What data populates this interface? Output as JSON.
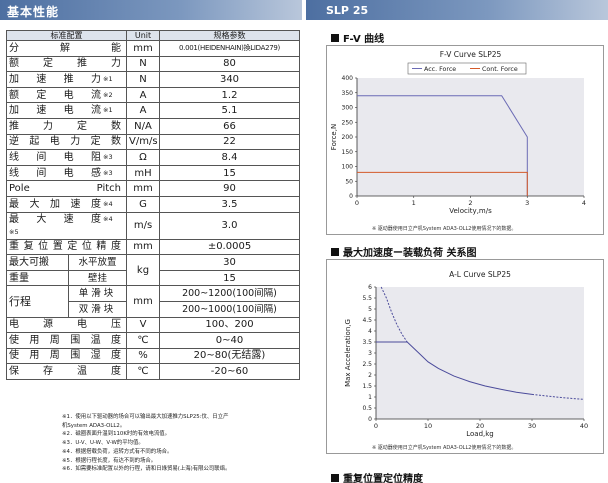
{
  "header": {
    "left_title": "基本性能",
    "right_title": "SLP 25"
  },
  "table": {
    "headers": [
      "标准配置",
      "Unit",
      "规格参数"
    ],
    "rows": [
      {
        "name": "分解能",
        "note": "",
        "unit": "mm",
        "value": "0.001(HEIDENHAIN)換LIDA279)"
      },
      {
        "name": "额定推力",
        "note": "",
        "unit": "N",
        "value": "80"
      },
      {
        "name": "加速推力",
        "note": "※1",
        "unit": "N",
        "value": "340"
      },
      {
        "name": "额定电流",
        "note": "※2",
        "unit": "A",
        "value": "1.2"
      },
      {
        "name": "加速电流",
        "note": "※1",
        "unit": "A",
        "value": "5.1"
      },
      {
        "name": "推力定数",
        "note": "",
        "unit": "N/A",
        "value": "66"
      },
      {
        "name": "逆起电力定数",
        "note": "",
        "unit": "V/m/s",
        "value": "22"
      },
      {
        "name": "线间电阻",
        "note": "※3",
        "unit": "Ω",
        "value": "8.4"
      },
      {
        "name": "线间电感",
        "note": "※3",
        "unit": "mH",
        "value": "15"
      },
      {
        "name": "Pole Pitch",
        "note": "",
        "unit": "mm",
        "value": "90"
      },
      {
        "name": "最大加速度",
        "note": "※4",
        "unit": "G",
        "value": "3.5"
      },
      {
        "name": "最大速度",
        "note": "※4 ※5",
        "unit": "m/s",
        "value": "3.0"
      },
      {
        "name": "重复位置定位精度",
        "note": "",
        "unit": "mm",
        "value": "±0.0005"
      }
    ],
    "load": {
      "name_line1": "最大可搬",
      "name_line2": "重量",
      "unit": "kg",
      "sub": [
        {
          "label": "水平放置",
          "value": "30"
        },
        {
          "label": "壁挂",
          "value": "15"
        }
      ]
    },
    "stroke": {
      "name": "行程",
      "unit": "mm",
      "sub": [
        {
          "label": "单滑块",
          "value": "200~1200(100间隔)"
        },
        {
          "label": "双滑块",
          "value": "200~1000(100间隔)"
        }
      ]
    },
    "rows2": [
      {
        "name": "电源电压",
        "unit": "V",
        "value": "100、200"
      },
      {
        "name": "使用周围温度",
        "unit": "℃",
        "value": "0~40"
      },
      {
        "name": "使用周围湿度",
        "unit": "%",
        "value": "20~80(无结露)"
      },
      {
        "name": "保存温度",
        "unit": "℃",
        "value": "-20~60"
      }
    ]
  },
  "notes": [
    "※1．使用以下驱动器的场合可以输出最大加速推力SLP25:伩、日立产",
    "        机System ADA3-OLL2。",
    "※2．磁圈表面升温到110K时的有效电流值。",
    "※3．U-V、U-W、V-W的平均值。",
    "※4．根据搭载负荷，运转方式有不同的场合。",
    "※5．根据行程长度，有达不到的场合。",
    "※6．如需要标准配置以外的行程，请和日綠贸易(上海)有限公司联络。"
  ],
  "sections": {
    "fv": "F-V 曲线",
    "al": "最大加速度ー装载负荷  关系图",
    "repeat": "重复位置定位精度"
  },
  "chart_data": [
    {
      "type": "line",
      "title": "F-V Curve  SLP25",
      "xlabel": "Velocity,m/s",
      "ylabel": "Force,N",
      "xlim": [
        0,
        4
      ],
      "ylim": [
        0,
        400
      ],
      "xticks": [
        0,
        1,
        2,
        3,
        4
      ],
      "yticks": [
        0,
        50,
        100,
        150,
        200,
        250,
        300,
        350,
        400
      ],
      "legend_position": "top",
      "grid": false,
      "series": [
        {
          "name": "Acc. Force",
          "color": "#6b6bb5",
          "x": [
            0,
            2.55,
            3.0,
            3.0
          ],
          "y": [
            340,
            340,
            200,
            0
          ]
        },
        {
          "name": "Cont. Force",
          "color": "#d45a2a",
          "x": [
            0,
            3.0,
            3.0
          ],
          "y": [
            80,
            80,
            0
          ]
        }
      ],
      "footnote": "※ 驱动器使用日立产机System ADA3-OLL2使用情况下的数据。"
    },
    {
      "type": "line",
      "title": "A-L Curve  SLP25",
      "xlabel": "Load,kg",
      "ylabel": "Max Acceleration,G",
      "xlim": [
        0,
        40
      ],
      "ylim": [
        0,
        6
      ],
      "xticks": [
        0,
        10,
        20,
        30,
        40
      ],
      "yticks": [
        0,
        0.5,
        1,
        1.5,
        2,
        2.5,
        3,
        3.5,
        4,
        4.5,
        5,
        5.5,
        6
      ],
      "grid": false,
      "series": [
        {
          "name": "",
          "color": "#4b4b9b",
          "style": "solid",
          "x": [
            0,
            6,
            6,
            8,
            10,
            12,
            15,
            18,
            21,
            24,
            27,
            30
          ],
          "y": [
            3.5,
            3.5,
            3.5,
            3.05,
            2.6,
            2.3,
            1.95,
            1.7,
            1.5,
            1.35,
            1.22,
            1.12
          ]
        },
        {
          "name": "",
          "color": "#4b4b9b",
          "style": "dashed",
          "x": [
            1,
            2,
            3,
            4,
            5,
            6
          ],
          "y": [
            6.0,
            5.5,
            4.85,
            4.3,
            3.85,
            3.5
          ]
        },
        {
          "name": "",
          "color": "#4b4b9b",
          "style": "dashed",
          "x": [
            30,
            33,
            36,
            40
          ],
          "y": [
            1.12,
            1.04,
            0.97,
            0.89
          ]
        }
      ],
      "footnote": "※ 驱动器使用日立产机System ADA3-OLL2使用情况下的数据。"
    }
  ]
}
